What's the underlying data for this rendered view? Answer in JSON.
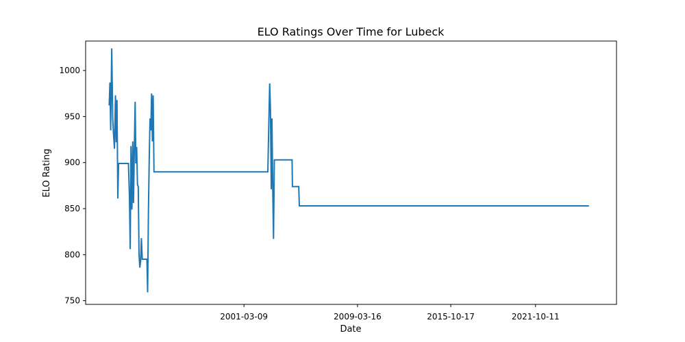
{
  "chart_data": {
    "type": "line",
    "title": "ELO Ratings Over Time for Lubeck",
    "xlabel": "Date",
    "ylabel": "ELO Rating",
    "x_ticks": [
      "2001-03-09",
      "2009-03-16",
      "2015-10-17",
      "2021-10-11"
    ],
    "y_ticks": [
      750,
      800,
      850,
      900,
      950,
      1000
    ],
    "xlim": [
      "1990-01-01",
      "2027-07-01"
    ],
    "ylim": [
      746,
      1032
    ],
    "grid": false,
    "color": "#1f77b4",
    "series": [
      {
        "points": [
          [
            "1991-09-01",
            962
          ],
          [
            "1991-09-20",
            987
          ],
          [
            "1991-10-10",
            935
          ],
          [
            "1991-11-05",
            1024
          ],
          [
            "1991-12-01",
            948
          ],
          [
            "1991-12-20",
            932
          ],
          [
            "1992-01-15",
            915
          ],
          [
            "1992-02-10",
            973
          ],
          [
            "1992-03-01",
            922
          ],
          [
            "1992-03-20",
            968
          ],
          [
            "1992-04-10",
            861
          ],
          [
            "1992-04-30",
            899
          ],
          [
            "1993-01-10",
            899
          ],
          [
            "1993-02-05",
            862
          ],
          [
            "1993-02-25",
            806
          ],
          [
            "1993-03-15",
            918
          ],
          [
            "1993-04-10",
            849
          ],
          [
            "1993-05-01",
            923
          ],
          [
            "1993-05-20",
            856
          ],
          [
            "1993-06-10",
            916
          ],
          [
            "1993-07-01",
            966
          ],
          [
            "1993-07-20",
            899
          ],
          [
            "1993-08-10",
            917
          ],
          [
            "1993-08-30",
            876
          ],
          [
            "1993-09-20",
            874
          ],
          [
            "1993-10-10",
            800
          ],
          [
            "1993-10-30",
            786
          ],
          [
            "1993-11-20",
            793
          ],
          [
            "1993-12-10",
            818
          ],
          [
            "1994-01-01",
            795
          ],
          [
            "1994-05-01",
            795
          ],
          [
            "1994-05-20",
            759
          ],
          [
            "1994-06-10",
            848
          ],
          [
            "1994-07-01",
            906
          ],
          [
            "1994-07-20",
            948
          ],
          [
            "1994-08-10",
            935
          ],
          [
            "1994-08-30",
            975
          ],
          [
            "1994-09-20",
            923
          ],
          [
            "1994-10-10",
            973
          ],
          [
            "1994-10-30",
            890
          ],
          [
            "1995-03-01",
            890
          ],
          [
            "2002-11-15",
            890
          ],
          [
            "2002-12-10",
            941
          ],
          [
            "2003-01-01",
            986
          ],
          [
            "2003-01-20",
            958
          ],
          [
            "2003-02-10",
            871
          ],
          [
            "2003-03-01",
            948
          ],
          [
            "2003-03-20",
            876
          ],
          [
            "2003-04-10",
            817
          ],
          [
            "2003-05-01",
            903
          ],
          [
            "2004-08-01",
            903
          ],
          [
            "2004-08-10",
            874
          ],
          [
            "2005-01-20",
            874
          ],
          [
            "2005-02-05",
            853
          ],
          [
            "2025-07-20",
            853
          ]
        ]
      }
    ]
  }
}
